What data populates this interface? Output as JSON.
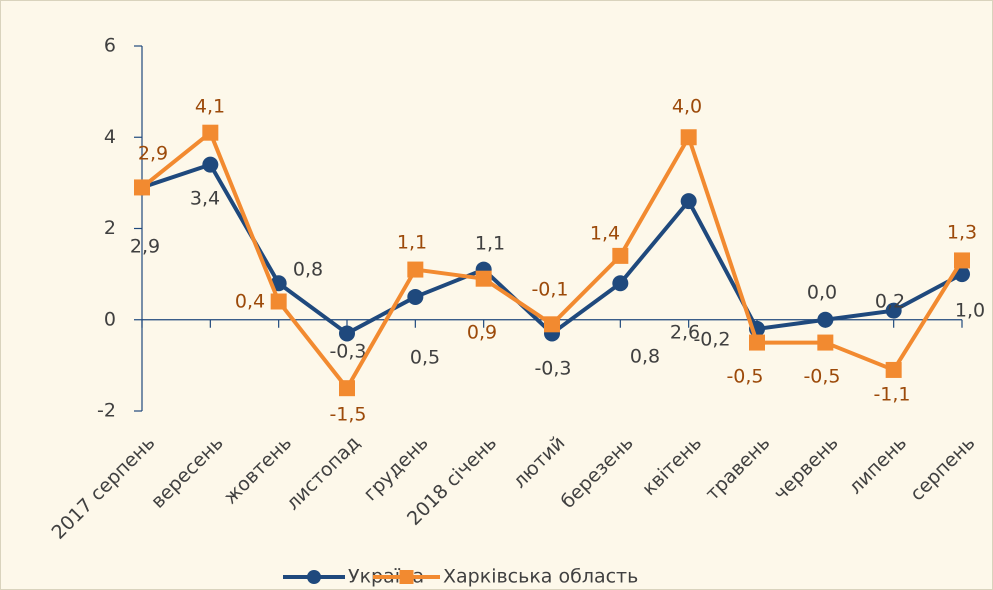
{
  "chart_data": {
    "type": "line",
    "categories": [
      "2017 серпень",
      "вересень",
      "жовтень",
      "листопад",
      "грудень",
      "2018 січень",
      "лютий",
      "березень",
      "квітень",
      "травень",
      "червень",
      "липень",
      "серпень"
    ],
    "series": [
      {
        "name": "Україна",
        "color": "#1f497d",
        "label_color": "#404040",
        "values": [
          2.9,
          3.4,
          0.8,
          -0.3,
          0.5,
          1.1,
          -0.3,
          0.8,
          2.6,
          -0.2,
          0.0,
          0.2,
          1.0
        ],
        "value_labels": [
          "2,9",
          "3,4",
          "0,8",
          "-0,3",
          "0,5",
          "1,1",
          "-0,3",
          "0,8",
          "2,6",
          "-0,2",
          "0,0",
          "0,2",
          "1,0"
        ]
      },
      {
        "name": "Харківська область",
        "color": "#f28a30",
        "label_color": "#9c4a0a",
        "values": [
          2.9,
          4.1,
          0.4,
          -1.5,
          1.1,
          0.9,
          -0.1,
          1.4,
          4.0,
          -0.5,
          -0.5,
          -1.1,
          1.3
        ],
        "value_labels": [
          "2,9",
          "4,1",
          "0,4",
          "-1,5",
          "1,1",
          "0,9",
          "-0,1",
          "1,4",
          "4,0",
          "-0,5",
          "-0,5",
          "-1,1",
          "1,3"
        ]
      }
    ],
    "ylim": [
      -2,
      6
    ],
    "yticks": [
      -2,
      0,
      2,
      4,
      6
    ],
    "grid": false,
    "legend": "bottom"
  }
}
